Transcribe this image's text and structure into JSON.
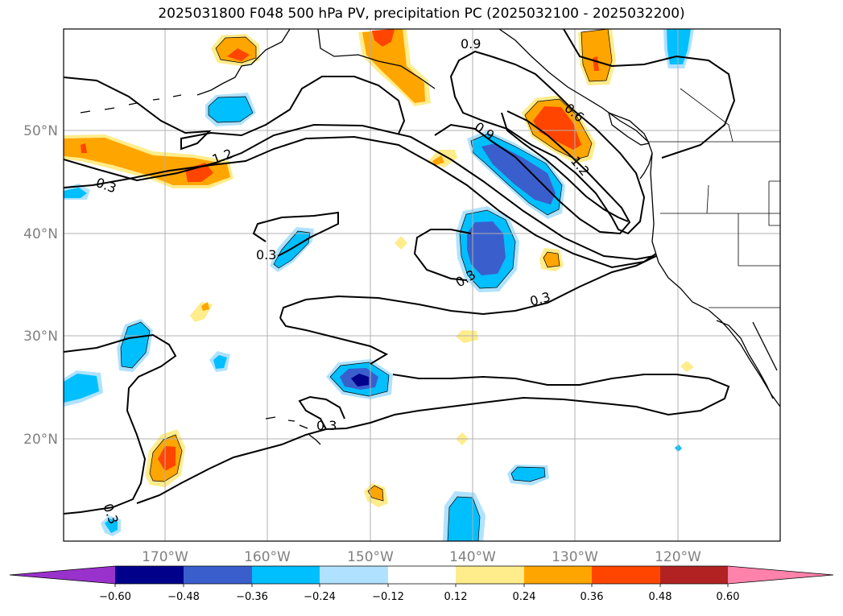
{
  "title": "2025031800 F048 500 hPa PV, precipitation PC (2025032100 - 2025032200)",
  "lat_labels": [
    "50°N",
    "40°N",
    "30°N",
    "20°N"
  ],
  "lon_labels": [
    "170°W",
    "160°W",
    "150°W",
    "140°W",
    "130°W",
    "120°W"
  ],
  "contour_labels": [
    "0.3",
    "1.2",
    "0.3",
    "0.3",
    "0.9",
    "0.6",
    "0.9",
    "1.2",
    "0.3",
    "0.3",
    "0.3",
    "0.3"
  ],
  "colorbar": {
    "ticks": [
      "−0.60",
      "−0.48",
      "−0.36",
      "−0.24",
      "−0.12",
      "0.12",
      "0.24",
      "0.36",
      "0.48",
      "0.60"
    ],
    "colors": [
      "#9932cc",
      "#00008b",
      "#3a5fcd",
      "#00bfff",
      "#b0e2ff",
      "#ffffff",
      "#ffec8b",
      "#ffa500",
      "#ff4500",
      "#b22222",
      "#ff82ab"
    ]
  },
  "field_colors": {
    "c_neg048": "#00008b",
    "c_neg036": "#3a5fcd",
    "c_neg024": "#00bfff",
    "c_neg012": "#b0e2ff",
    "c_pos012": "#ffec8b",
    "c_pos024": "#ffa500",
    "c_pos036": "#ff4500"
  }
}
